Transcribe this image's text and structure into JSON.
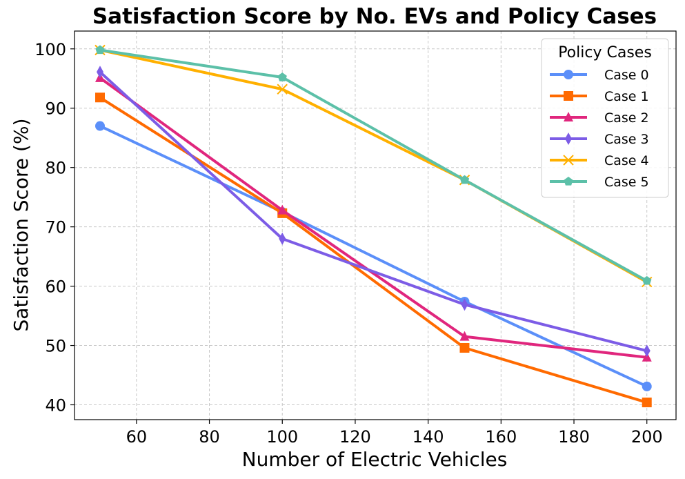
{
  "chart_data": {
    "type": "line",
    "title": "Satisfaction Score by No. EVs and Policy Cases",
    "xlabel": "Number of Electric Vehicles",
    "ylabel": "Satisfaction Score (%)",
    "xlim": [
      43,
      208
    ],
    "ylim": [
      37.5,
      103
    ],
    "xticks": [
      60,
      80,
      100,
      120,
      140,
      160,
      180,
      200
    ],
    "yticks": [
      40,
      50,
      60,
      70,
      80,
      90,
      100
    ],
    "grid": true,
    "legend": {
      "title": "Policy Cases",
      "placement": "top-right"
    },
    "x": [
      50,
      100,
      150,
      200
    ],
    "series": [
      {
        "name": "Case 0",
        "color": "#5b8ff9",
        "marker": "circle",
        "values": [
          87.0,
          72.5,
          57.4,
          43.1
        ]
      },
      {
        "name": "Case 1",
        "color": "#ff6a00",
        "marker": "square",
        "values": [
          91.8,
          72.3,
          49.6,
          40.4
        ]
      },
      {
        "name": "Case 2",
        "color": "#e0267d",
        "marker": "triangle",
        "values": [
          95.1,
          72.8,
          51.5,
          48.0
        ]
      },
      {
        "name": "Case 3",
        "color": "#7c5ce6",
        "marker": "diamond",
        "values": [
          96.1,
          68.0,
          56.9,
          49.1
        ]
      },
      {
        "name": "Case 4",
        "color": "#ffb000",
        "marker": "x",
        "values": [
          99.8,
          93.2,
          77.9,
          60.7
        ]
      },
      {
        "name": "Case 5",
        "color": "#5cc0a8",
        "marker": "pentagon",
        "values": [
          99.8,
          95.2,
          77.9,
          60.9
        ]
      }
    ]
  }
}
